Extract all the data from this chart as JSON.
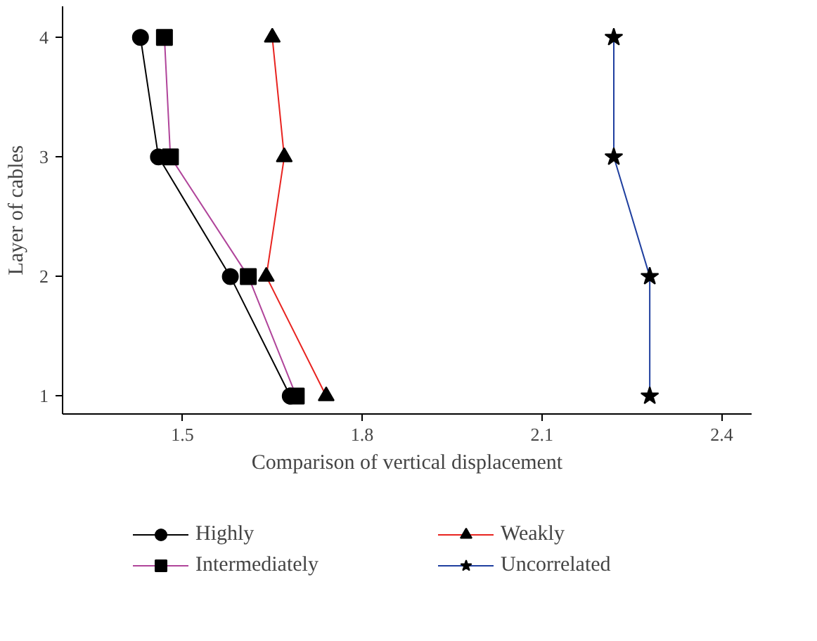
{
  "chart_data": {
    "type": "line",
    "xlabel": "Comparison of vertical displacement",
    "ylabel": "Layer of cables",
    "xlim": [
      1.3,
      2.45
    ],
    "xticks": [
      1.5,
      1.8,
      2.1,
      2.4
    ],
    "ylim": [
      0.85,
      4.26
    ],
    "yticks": [
      1,
      2,
      3,
      4
    ],
    "grid": false,
    "legend": "bottom",
    "series": [
      {
        "name": "Highly",
        "color": "#000000",
        "marker": "circle",
        "x": [
          1.43,
          1.46,
          1.58,
          1.68
        ],
        "values": [
          4,
          3,
          2,
          1
        ]
      },
      {
        "name": "Intermediately",
        "color": "#b0449a",
        "marker": "square",
        "x": [
          1.47,
          1.48,
          1.61,
          1.69
        ],
        "values": [
          4,
          3,
          2,
          1
        ]
      },
      {
        "name": "Weakly",
        "color": "#e8231f",
        "marker": "triangle",
        "x": [
          1.65,
          1.67,
          1.64,
          1.74
        ],
        "values": [
          4,
          3,
          2,
          1
        ]
      },
      {
        "name": "Uncorrelated",
        "color": "#1f3f9f",
        "marker": "star",
        "x": [
          2.22,
          2.22,
          2.28,
          2.28
        ],
        "values": [
          4,
          3,
          2,
          1
        ]
      }
    ]
  }
}
